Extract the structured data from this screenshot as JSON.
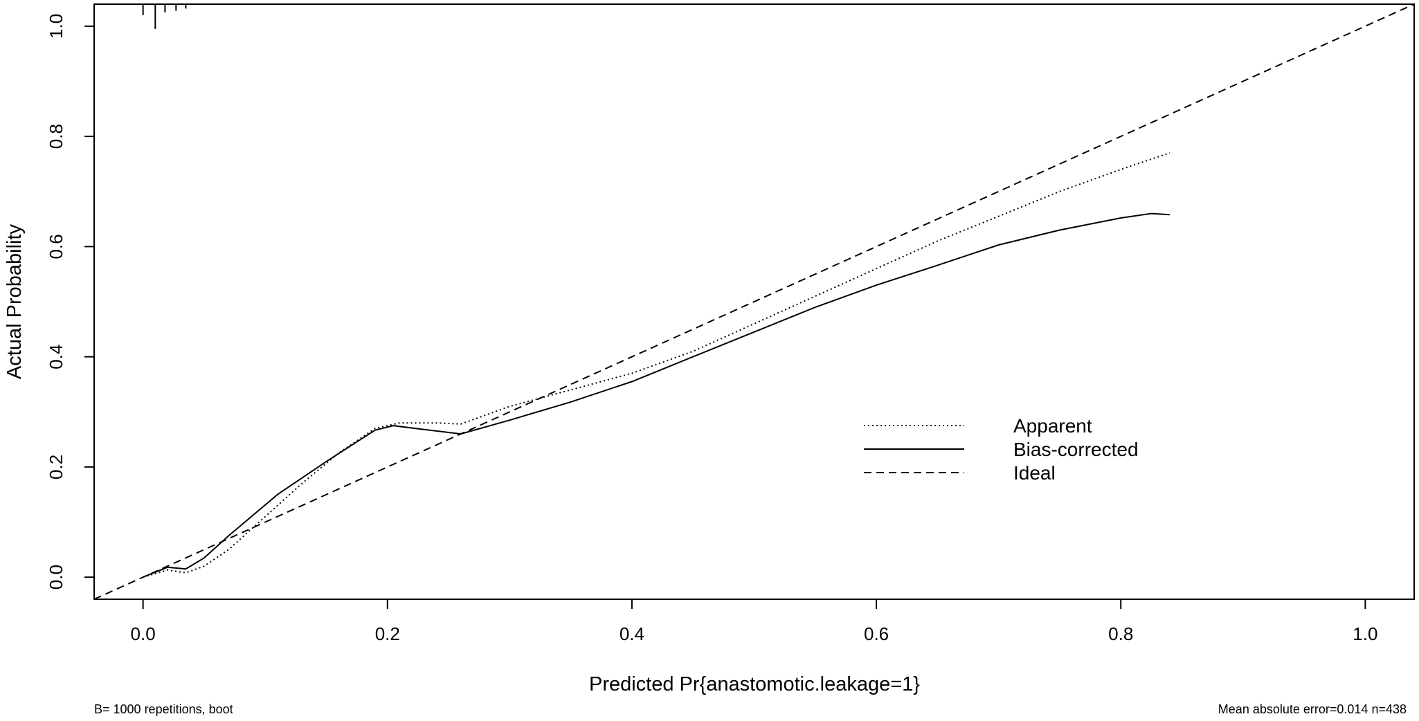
{
  "chart_data": {
    "type": "line",
    "title": "",
    "xlabel": "Predicted Pr{anastomotic.leakage=1}",
    "ylabel": "Actual Probability",
    "xlim": [
      -0.04,
      1.04
    ],
    "ylim": [
      -0.04,
      1.04
    ],
    "xticks": [
      0.0,
      0.2,
      0.4,
      0.6,
      0.8,
      1.0
    ],
    "xtick_labels": [
      "0.0",
      "0.2",
      "0.4",
      "0.6",
      "0.8",
      "1.0"
    ],
    "yticks": [
      0.0,
      0.2,
      0.4,
      0.6,
      0.8,
      1.0
    ],
    "ytick_labels": [
      "0.0",
      "0.2",
      "0.4",
      "0.6",
      "0.8",
      "1.0"
    ],
    "grid": false,
    "legend": {
      "position": "center-right",
      "entries": [
        "Apparent",
        "Bias-corrected",
        "Ideal"
      ]
    },
    "footnote_left": "B= 1000 repetitions, boot",
    "footnote_right": "Mean absolute error=0.014 n=438",
    "rug": {
      "x": [
        0.0,
        0.01,
        0.018,
        0.027,
        0.035
      ],
      "y_length": [
        0.02,
        0.045,
        0.015,
        0.012,
        0.008
      ]
    },
    "series": [
      {
        "name": "Apparent",
        "style": "dotted",
        "x": [
          0.0,
          0.02,
          0.035,
          0.05,
          0.07,
          0.1,
          0.13,
          0.16,
          0.19,
          0.21,
          0.24,
          0.26,
          0.3,
          0.35,
          0.4,
          0.45,
          0.5,
          0.55,
          0.6,
          0.65,
          0.7,
          0.75,
          0.8,
          0.84
        ],
        "y": [
          0.0,
          0.013,
          0.008,
          0.02,
          0.05,
          0.11,
          0.17,
          0.225,
          0.27,
          0.28,
          0.28,
          0.278,
          0.31,
          0.34,
          0.37,
          0.41,
          0.46,
          0.51,
          0.56,
          0.61,
          0.655,
          0.7,
          0.74,
          0.77
        ]
      },
      {
        "name": "Bias-corrected",
        "style": "solid",
        "x": [
          0.0,
          0.02,
          0.035,
          0.05,
          0.07,
          0.11,
          0.15,
          0.19,
          0.205,
          0.23,
          0.26,
          0.3,
          0.35,
          0.4,
          0.45,
          0.5,
          0.55,
          0.6,
          0.65,
          0.7,
          0.75,
          0.8,
          0.825,
          0.84
        ],
        "y": [
          0.0,
          0.018,
          0.015,
          0.035,
          0.075,
          0.15,
          0.21,
          0.267,
          0.275,
          0.268,
          0.26,
          0.285,
          0.318,
          0.355,
          0.4,
          0.445,
          0.49,
          0.53,
          0.566,
          0.603,
          0.63,
          0.652,
          0.66,
          0.658
        ]
      },
      {
        "name": "Ideal",
        "style": "dashed",
        "x": [
          -0.04,
          1.04
        ],
        "y": [
          -0.04,
          1.04
        ]
      }
    ]
  }
}
